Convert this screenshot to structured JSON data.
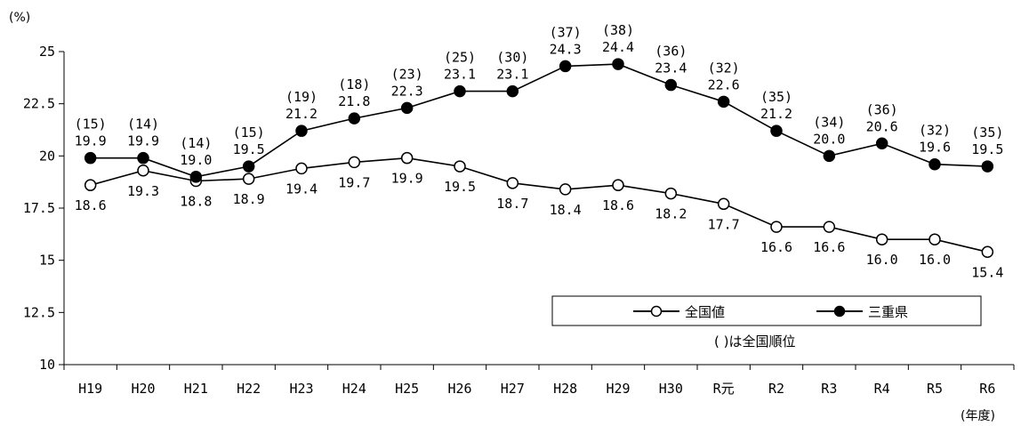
{
  "chart_data": {
    "type": "line",
    "y_unit": "(%)",
    "x_unit": "(年度)",
    "categories": [
      "H19",
      "H20",
      "H21",
      "H22",
      "H23",
      "H24",
      "H25",
      "H26",
      "H27",
      "H28",
      "H29",
      "H30",
      "R元",
      "R2",
      "R3",
      "R4",
      "R5",
      "R6"
    ],
    "ylim": [
      10,
      25
    ],
    "yticks": [
      10,
      12.5,
      15,
      17.5,
      20,
      22.5,
      25
    ],
    "ytick_labels": [
      "10",
      "12.5",
      "15",
      "17.5",
      "20",
      "22.5",
      "25"
    ],
    "grid": false,
    "legend_position": "bottom-right",
    "series": [
      {
        "name": "全国値",
        "marker": "open-circle",
        "values": [
          18.6,
          19.3,
          18.8,
          18.9,
          19.4,
          19.7,
          19.9,
          19.5,
          18.7,
          18.4,
          18.6,
          18.2,
          17.7,
          16.6,
          16.6,
          16.0,
          16.0,
          15.4
        ],
        "value_labels": [
          "18.6",
          "19.3",
          "18.8",
          "18.9",
          "19.4",
          "19.7",
          "19.9",
          "19.5",
          "18.7",
          "18.4",
          "18.6",
          "18.2",
          "17.7",
          "16.6",
          "16.6",
          "16.0",
          "16.0",
          "15.4"
        ]
      },
      {
        "name": "三重県",
        "marker": "filled-circle",
        "values": [
          19.9,
          19.9,
          19.0,
          19.5,
          21.2,
          21.8,
          22.3,
          23.1,
          23.1,
          24.3,
          24.4,
          23.4,
          22.6,
          21.2,
          20.0,
          20.6,
          19.6,
          19.5
        ],
        "value_labels": [
          "19.9",
          "19.9",
          "19.0",
          "19.5",
          "21.2",
          "21.8",
          "22.3",
          "23.1",
          "23.1",
          "24.3",
          "24.4",
          "23.4",
          "22.6",
          "21.2",
          "20.0",
          "20.6",
          "19.6",
          "19.5"
        ],
        "ranks": [
          "(15)",
          "(14)",
          "(14)",
          "(15)",
          "(19)",
          "(18)",
          "(23)",
          "(25)",
          "(30)",
          "(37)",
          "(38)",
          "(36)",
          "(32)",
          "(35)",
          "(34)",
          "(36)",
          "(32)",
          "(35)"
        ]
      }
    ],
    "note": "( )は全国順位"
  }
}
